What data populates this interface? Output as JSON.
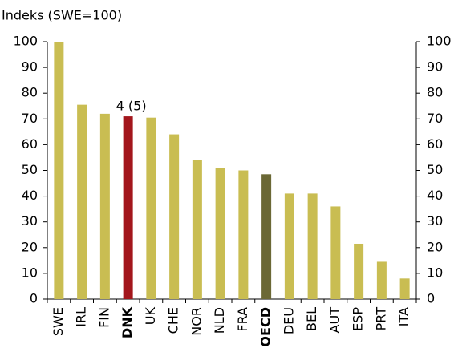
{
  "chart_data": {
    "type": "bar",
    "title": "Indeks (SWE=100)",
    "categories": [
      "SWE",
      "IRL",
      "FIN",
      "DNK",
      "UK",
      "CHE",
      "NOR",
      "NLD",
      "FRA",
      "OECD",
      "DEU",
      "BEL",
      "AUT",
      "ESP",
      "PRT",
      "ITA"
    ],
    "values": [
      100,
      75.5,
      72,
      71,
      70.5,
      64,
      54,
      51,
      50,
      48.5,
      41,
      41,
      36,
      21.5,
      14.5,
      8
    ],
    "color": "#c9bd52",
    "colors": [
      "#c9bd52",
      "#c9bd52",
      "#c9bd52",
      "#a3161c",
      "#c9bd52",
      "#c9bd52",
      "#c9bd52",
      "#c9bd52",
      "#c9bd52",
      "#6b6835",
      "#c9bd52",
      "#c9bd52",
      "#c9bd52",
      "#c9bd52",
      "#c9bd52",
      "#c9bd52"
    ],
    "ylim": [
      0,
      100
    ],
    "yticks": [
      0,
      10,
      20,
      30,
      40,
      50,
      60,
      70,
      80,
      90,
      100
    ],
    "y2lim": [
      0,
      100
    ],
    "y2ticks": [
      0,
      10,
      20,
      30,
      40,
      50,
      60,
      70,
      80,
      90,
      100
    ],
    "annotations": [
      {
        "text": "4 (5)",
        "x": "DNK"
      }
    ],
    "grid": false
  }
}
